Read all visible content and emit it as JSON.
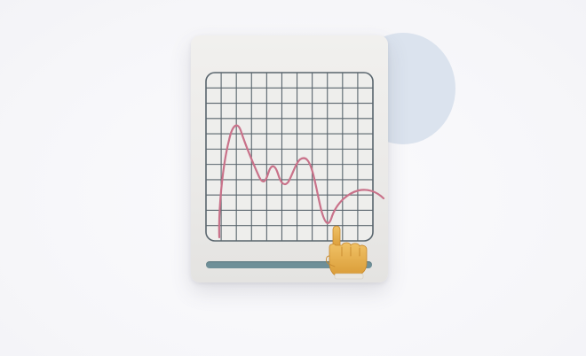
{
  "scene": {
    "description_free": true,
    "background_color": "#f9f9fb",
    "accent_circle_color": "#dbe3ee",
    "card_color": "#edecea",
    "grid_color": "#59656d",
    "line_color": "#c9728a",
    "slider_color": "#6e8f98",
    "hand_color": "#e7b04d"
  },
  "slider": {
    "level": 0.77
  },
  "icons": {
    "chart": "line-chart-icon",
    "pointer": "pointing-hand-icon"
  }
}
